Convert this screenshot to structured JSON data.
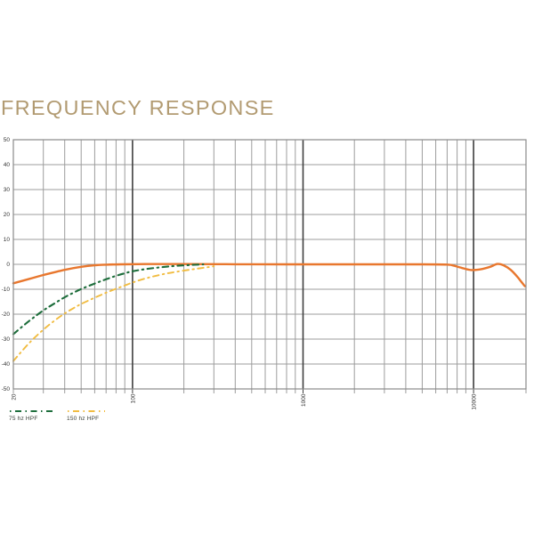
{
  "title": "FREQUENCY RESPONSE",
  "colors": {
    "title": "#b29b72",
    "main_curve": "#e8772e",
    "hpf75_curve": "#1e6e3c",
    "hpf150_curve": "#f1bc41",
    "grid_minor": "#9c9c9c",
    "grid_major": "#3f3f3f",
    "plot_border": "#8a8a8a",
    "tick_text": "#333333"
  },
  "chart_data": {
    "type": "line",
    "title": "FREQUENCY RESPONSE",
    "grid": true,
    "x_axis": {
      "scale": "log",
      "min": 20,
      "max": 20000,
      "tick_labels": [
        "20",
        "100",
        "1000",
        "10000"
      ],
      "tick_label_values": [
        20,
        100,
        1000,
        10000
      ],
      "gridline_values": [
        30,
        40,
        50,
        60,
        70,
        80,
        90,
        100,
        200,
        300,
        400,
        500,
        600,
        700,
        800,
        900,
        1000,
        2000,
        3000,
        4000,
        5000,
        6000,
        7000,
        8000,
        9000,
        10000
      ],
      "major_gridline_values": [
        100,
        1000,
        10000
      ],
      "label_rotation_deg": -90
    },
    "y_axis": {
      "min": -50,
      "max": 50,
      "tick_values": [
        50,
        40,
        30,
        20,
        10,
        0,
        -10,
        -20,
        -30,
        -40,
        -50
      ],
      "gridline_step": 10
    },
    "series": [
      {
        "name": "main",
        "color": "#e8772e",
        "style": "solid",
        "stroke_width": 2.4,
        "points": [
          [
            20,
            -7.6
          ],
          [
            25,
            -5.8
          ],
          [
            30,
            -4.3
          ],
          [
            40,
            -2.2
          ],
          [
            50,
            -1.0
          ],
          [
            60,
            -0.4
          ],
          [
            70,
            -0.15
          ],
          [
            85,
            0
          ],
          [
            120,
            0.1
          ],
          [
            200,
            0.1
          ],
          [
            400,
            0.05
          ],
          [
            800,
            0
          ],
          [
            1500,
            0
          ],
          [
            3000,
            0
          ],
          [
            5000,
            0
          ],
          [
            7000,
            -0.1
          ],
          [
            7500,
            -0.4
          ],
          [
            8500,
            -1.4
          ],
          [
            9700,
            -2.3
          ],
          [
            11000,
            -2.0
          ],
          [
            12500,
            -1.0
          ],
          [
            13800,
            0.15
          ],
          [
            15000,
            -0.4
          ],
          [
            16500,
            -2.2
          ],
          [
            18000,
            -4.9
          ],
          [
            19000,
            -6.9
          ],
          [
            20000,
            -8.8
          ]
        ]
      },
      {
        "name": "75 hz HPF",
        "color": "#1e6e3c",
        "style": "dash-dot",
        "stroke_width": 2.1,
        "points": [
          [
            20,
            -28
          ],
          [
            25,
            -22.5
          ],
          [
            30,
            -18.5
          ],
          [
            35,
            -15.6
          ],
          [
            40,
            -13.2
          ],
          [
            45,
            -11.4
          ],
          [
            50,
            -9.9
          ],
          [
            60,
            -7.7
          ],
          [
            70,
            -6.0
          ],
          [
            80,
            -4.6
          ],
          [
            90,
            -3.6
          ],
          [
            100,
            -2.8
          ],
          [
            120,
            -1.9
          ],
          [
            150,
            -1.1
          ],
          [
            180,
            -0.6
          ],
          [
            220,
            -0.25
          ],
          [
            260,
            -0.05
          ]
        ]
      },
      {
        "name": "150 hz HPF",
        "color": "#f1bc41",
        "style": "dash-dot",
        "stroke_width": 1.9,
        "points": [
          [
            20,
            -38.8
          ],
          [
            25,
            -31.3
          ],
          [
            30,
            -26.2
          ],
          [
            35,
            -22.5
          ],
          [
            40,
            -19.7
          ],
          [
            45,
            -17.6
          ],
          [
            50,
            -15.9
          ],
          [
            60,
            -13.4
          ],
          [
            70,
            -11.4
          ],
          [
            80,
            -9.8
          ],
          [
            90,
            -8.5
          ],
          [
            100,
            -7.3
          ],
          [
            120,
            -5.6
          ],
          [
            150,
            -4.0
          ],
          [
            180,
            -3.0
          ],
          [
            220,
            -2.1
          ],
          [
            260,
            -1.4
          ],
          [
            300,
            -0.8
          ]
        ]
      }
    ],
    "legend": [
      {
        "label": "75 hz HPF",
        "color": "#1e6e3c"
      },
      {
        "label": "150 hz HPF",
        "color": "#f1bc41"
      }
    ],
    "legend_position": "bottom-left"
  }
}
